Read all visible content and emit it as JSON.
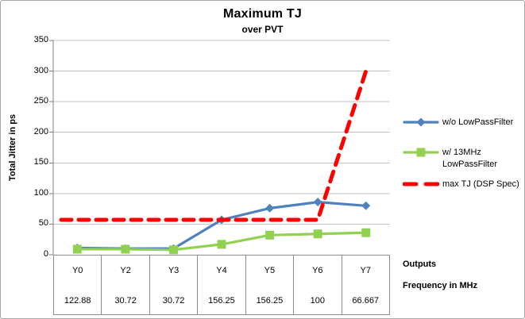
{
  "chart_data": {
    "type": "line",
    "title": "Maximum TJ",
    "subtitle": "over PVT",
    "ylabel": "Total Jitter in ps",
    "ylim": [
      0,
      350
    ],
    "ytick_step": 50,
    "grid": true,
    "legend_position": "right",
    "categories": [
      "Y0",
      "Y2",
      "Y3",
      "Y4",
      "Y5",
      "Y6",
      "Y7"
    ],
    "frequencies": [
      "122.88",
      "30.72",
      "30.72",
      "156.25",
      "156.25",
      "100",
      "66.667"
    ],
    "table_row_labels": [
      "Outputs",
      "Frequency in MHz"
    ],
    "series": [
      {
        "name": "w/o LowPassFilter",
        "color": "#4F81BD",
        "marker": "diamond",
        "line": "solid",
        "values": [
          11,
          10,
          10,
          57,
          76,
          86,
          80
        ]
      },
      {
        "name": "w/ 13MHz LowPassFilter",
        "color": "#92D050",
        "marker": "square",
        "line": "solid",
        "values": [
          9,
          9,
          8,
          17,
          32,
          34,
          36
        ]
      },
      {
        "name": "max TJ (DSP Spec)",
        "color": "#FF0000",
        "marker": "none",
        "line": "dashed",
        "values": [
          57,
          57,
          57,
          57,
          57,
          57,
          300
        ]
      }
    ]
  }
}
